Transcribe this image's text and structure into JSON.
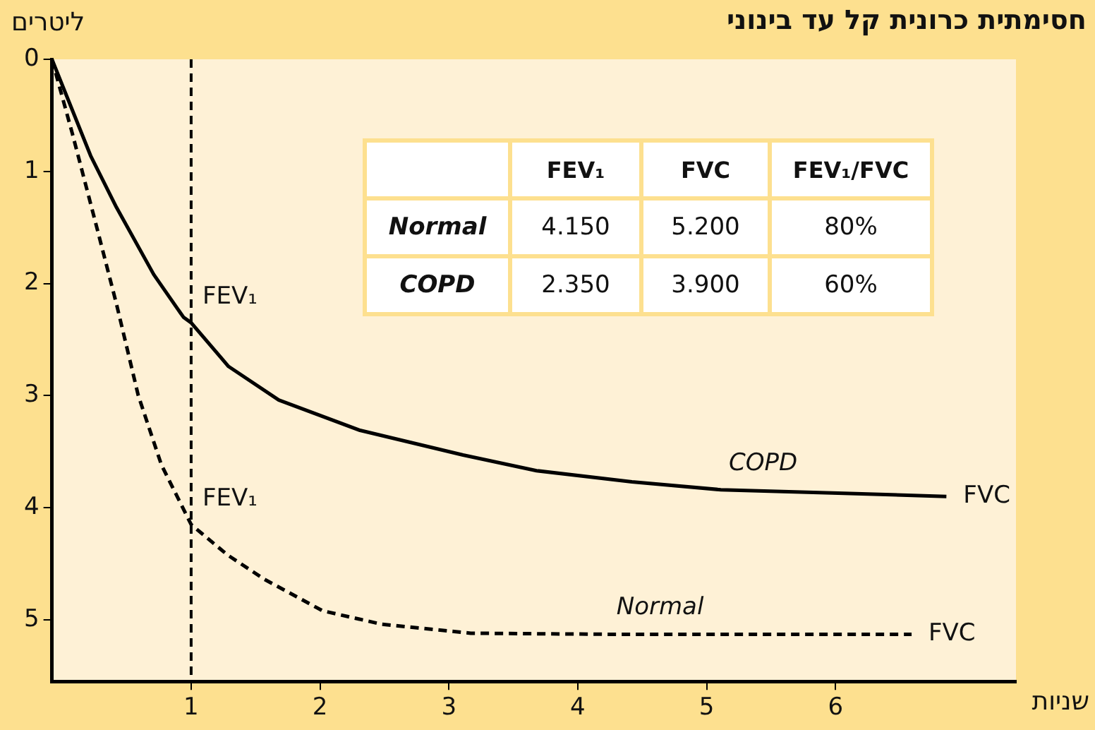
{
  "chart_data": {
    "type": "line",
    "title": "חסימתית כרונית קל עד בינוני",
    "xlabel": "שניות",
    "ylabel": "ליטרים",
    "xlim": [
      -0.08,
      7.4
    ],
    "xticks": [
      1,
      2,
      3,
      4,
      5,
      6
    ],
    "ylim": [
      5.55,
      0
    ],
    "yticks": [
      0,
      1,
      2,
      3,
      4,
      5
    ],
    "grid": false,
    "legend": false,
    "marker": "none",
    "series": [
      {
        "name": "COPD",
        "color": "#000000",
        "line_style": "solid",
        "x": [
          -0.08,
          0.22,
          0.42,
          0.71,
          0.94,
          1.0,
          1.29,
          1.68,
          2.31,
          3.11,
          3.68,
          4.42,
          5.11,
          6.02,
          6.86
        ],
        "values": [
          0,
          0.86,
          1.32,
          1.92,
          2.3,
          2.35,
          2.74,
          3.04,
          3.31,
          3.53,
          3.67,
          3.77,
          3.84,
          3.87,
          3.9
        ]
      },
      {
        "name": "Normal",
        "color": "#000000",
        "line_style": "dashed",
        "x": [
          -0.08,
          0.08,
          0.25,
          0.42,
          0.59,
          0.77,
          1.0,
          1.28,
          1.57,
          2.02,
          2.48,
          3.17,
          4.31,
          6.59
        ],
        "values": [
          0,
          0.67,
          1.42,
          2.18,
          3.0,
          3.62,
          4.15,
          4.42,
          4.64,
          4.92,
          5.04,
          5.12,
          5.13,
          5.13
        ]
      }
    ],
    "ref_lines": [
      {
        "axis": "x",
        "value": 1,
        "line_style": "dashed",
        "color": "#000000"
      }
    ],
    "annotations": [
      {
        "text": "FEV₁",
        "x": 1,
        "y": 2.35
      },
      {
        "text": "FEV₁",
        "x": 1,
        "y": 4.15
      },
      {
        "text": "FVC",
        "x": 6.86,
        "y": 3.9
      },
      {
        "text": "FVC",
        "x": 6.59,
        "y": 5.13
      },
      "FEV₁",
      "FVC",
      "FEV₁/FVC",
      "Normal",
      "4.150",
      "5.200",
      "80%",
      "COPD",
      "2.350",
      "3.900",
      "60%"
    ]
  }
}
